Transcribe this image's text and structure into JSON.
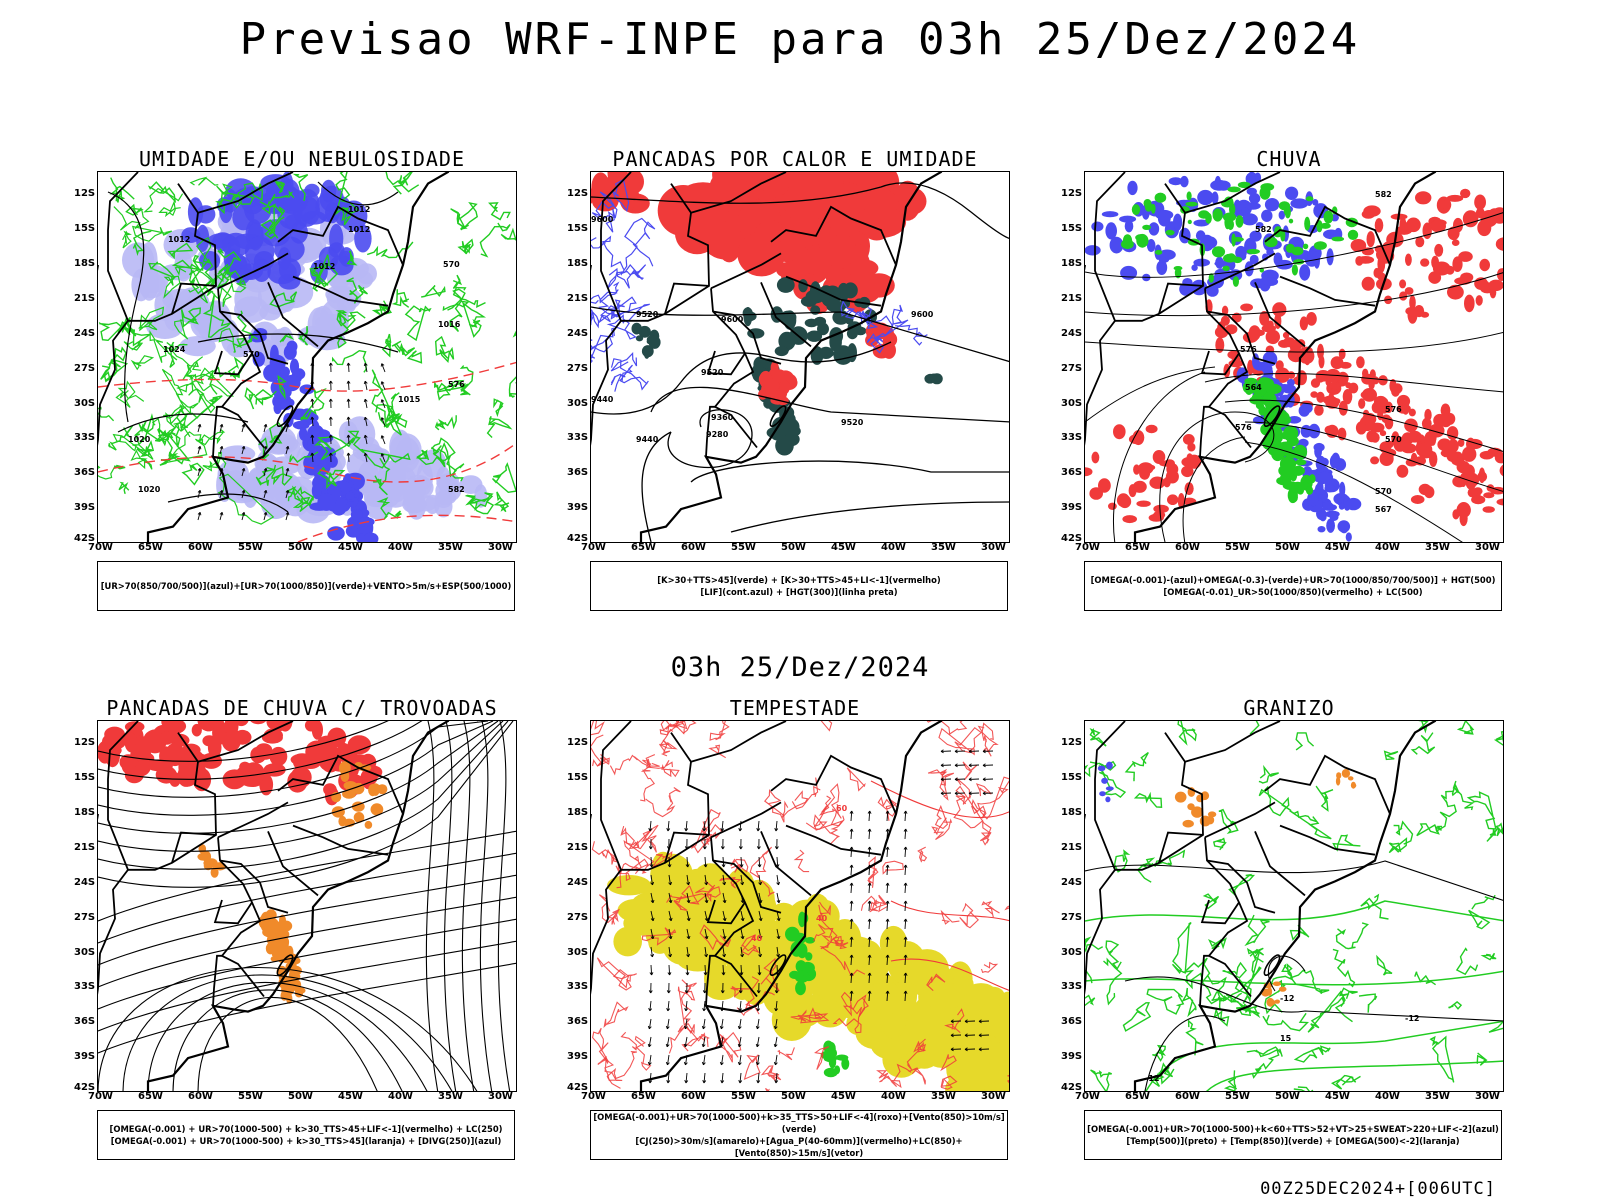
{
  "header": {
    "title": "Previsao WRF-INPE  para 03h 25/Dez/2024",
    "mid_time": "03h 25/Dez/2024",
    "footer": "00Z25DEC2024+[006UTC]"
  },
  "axes": {
    "lat_labels": [
      "12S",
      "15S",
      "18S",
      "21S",
      "24S",
      "27S",
      "30S",
      "33S",
      "36S",
      "39S",
      "42S"
    ],
    "lon_labels": [
      "70W",
      "65W",
      "60W",
      "55W",
      "50W",
      "45W",
      "40W",
      "35W",
      "30W"
    ]
  },
  "panels": [
    {
      "title": "UMIDADE E/OU NEBULOSIDADE",
      "legend": [
        "[UR>70(850/700/500)](azul)+[UR>70(1000/850)](verde)+VENTO>5m/s+ESP(500/1000)"
      ],
      "contour_labels": [
        "1012",
        "1012",
        "1012",
        "1012",
        "1016",
        "1020",
        "1020",
        "1024",
        "570",
        "570",
        "576",
        "582",
        "1015"
      ]
    },
    {
      "title": "PANCADAS POR CALOR E UMIDADE",
      "legend": [
        "[K>30+TTS>45](verde) + [K>30+TTS>45+LI<-1](vermelho)",
        "[LIF](cont.azul) + [HGT(300)](linha preta)"
      ],
      "contour_labels": [
        "9600",
        "9600",
        "9520",
        "9520",
        "9440",
        "9440",
        "9360",
        "9280",
        "9520",
        "9600"
      ]
    },
    {
      "title": "CHUVA",
      "legend": [
        "[OMEGA(-0.001)-(azul)+OMEGA(-0.3)-(verde)+UR>70(1000/850/700/500)] + HGT(500)",
        "[OMEGA(-0.01)_UR>50(1000/850)(vermelho) + LC(500)"
      ],
      "contour_labels": [
        "582",
        "582",
        "576",
        "576",
        "570",
        "564",
        "576",
        "570",
        "567"
      ]
    },
    {
      "title": "PANCADAS DE CHUVA C/ TROVOADAS",
      "legend": [
        "[OMEGA(-0.001) + UR>70(1000-500) + k>30_TTS>45+LIF<-1](vermelho) + LC(250)",
        "[OMEGA(-0.001) + UR>70(1000-500) + k>30_TTS>45](laranja) + [DIVG(250)](azul)"
      ],
      "contour_labels": []
    },
    {
      "title": "TEMPESTADE",
      "legend": [
        "[OMEGA(-0.001)+UR>70(1000-500)+k>35_TTS>50+LIF<-4](roxo)+[Vento(850)>10m/s](verde)",
        "[CJ(250)>30m/s](amarelo)+[Agua_P(40-60mm)](vermelho)+LC(850)+[Vento(850)>15m/s](vetor)"
      ],
      "contour_labels": [
        "40",
        "40",
        "60"
      ]
    },
    {
      "title": "GRANIZO",
      "legend": [
        "[OMEGA(-0.001)+UR>70(1000-500)+k<60+TTS>52+VT>25+SWEAT>220+LIF<-2](azul)",
        "[Temp(500)](preto) + [Temp(850)](verde) + [OMEGA(500)<-2](laranja)"
      ],
      "contour_labels": [
        "-12",
        "-12",
        "-12",
        "15"
      ]
    }
  ],
  "colors": {
    "red": "#f03a3a",
    "blue": "#4b4bf0",
    "lightblue": "#b8b8f5",
    "green": "#22cc22",
    "darkteal": "#244a48",
    "orange": "#f08a2a",
    "yellow": "#e6d92a",
    "black": "#000000"
  }
}
